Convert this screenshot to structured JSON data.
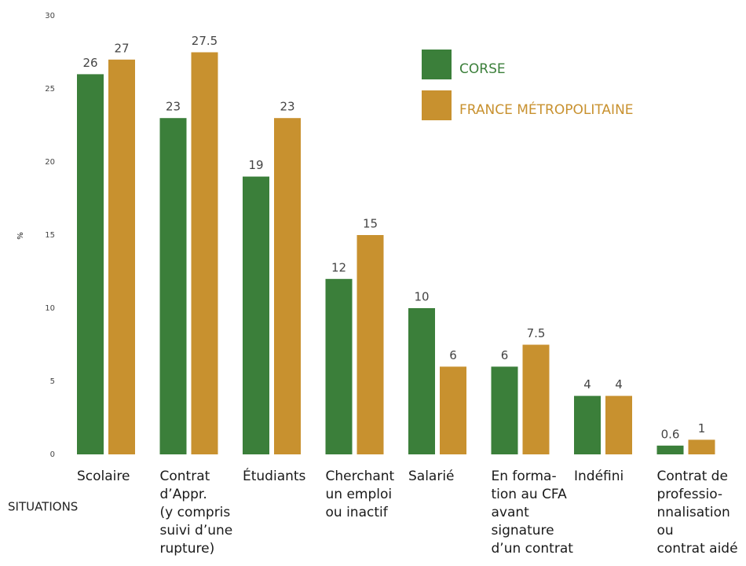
{
  "chart_data": {
    "type": "bar",
    "y_label": "%",
    "x_label": "SITUATIONS",
    "categories": [
      [
        "Scolaire"
      ],
      [
        "Contrat",
        "d’Appr.",
        "(y compris",
        "suivi d’une",
        "rupture)"
      ],
      [
        "Étudiants"
      ],
      [
        "Cherchant",
        "un emploi",
        "ou inactif"
      ],
      [
        "Salarié"
      ],
      [
        "En forma-",
        "tion au CFA",
        "avant",
        "signature",
        "d’un contrat"
      ],
      [
        "Indéfini"
      ],
      [
        "Contrat de",
        "professio-",
        "nnalisation",
        "ou",
        "contrat aidé"
      ]
    ],
    "series": [
      {
        "name": "CORSE",
        "color": "#3b7f3a",
        "values": [
          26,
          23,
          19,
          12,
          10,
          6,
          4,
          0.6
        ]
      },
      {
        "name": "FRANCE MÉTROPOLITAINE",
        "color": "#c8912f",
        "values": [
          27,
          27.5,
          23,
          15,
          6,
          7.5,
          4,
          1
        ]
      }
    ],
    "ylim": [
      0,
      30
    ],
    "yticks": [
      0,
      5,
      10,
      15,
      20,
      25,
      30
    ],
    "grid": false,
    "legend": "upper right"
  }
}
